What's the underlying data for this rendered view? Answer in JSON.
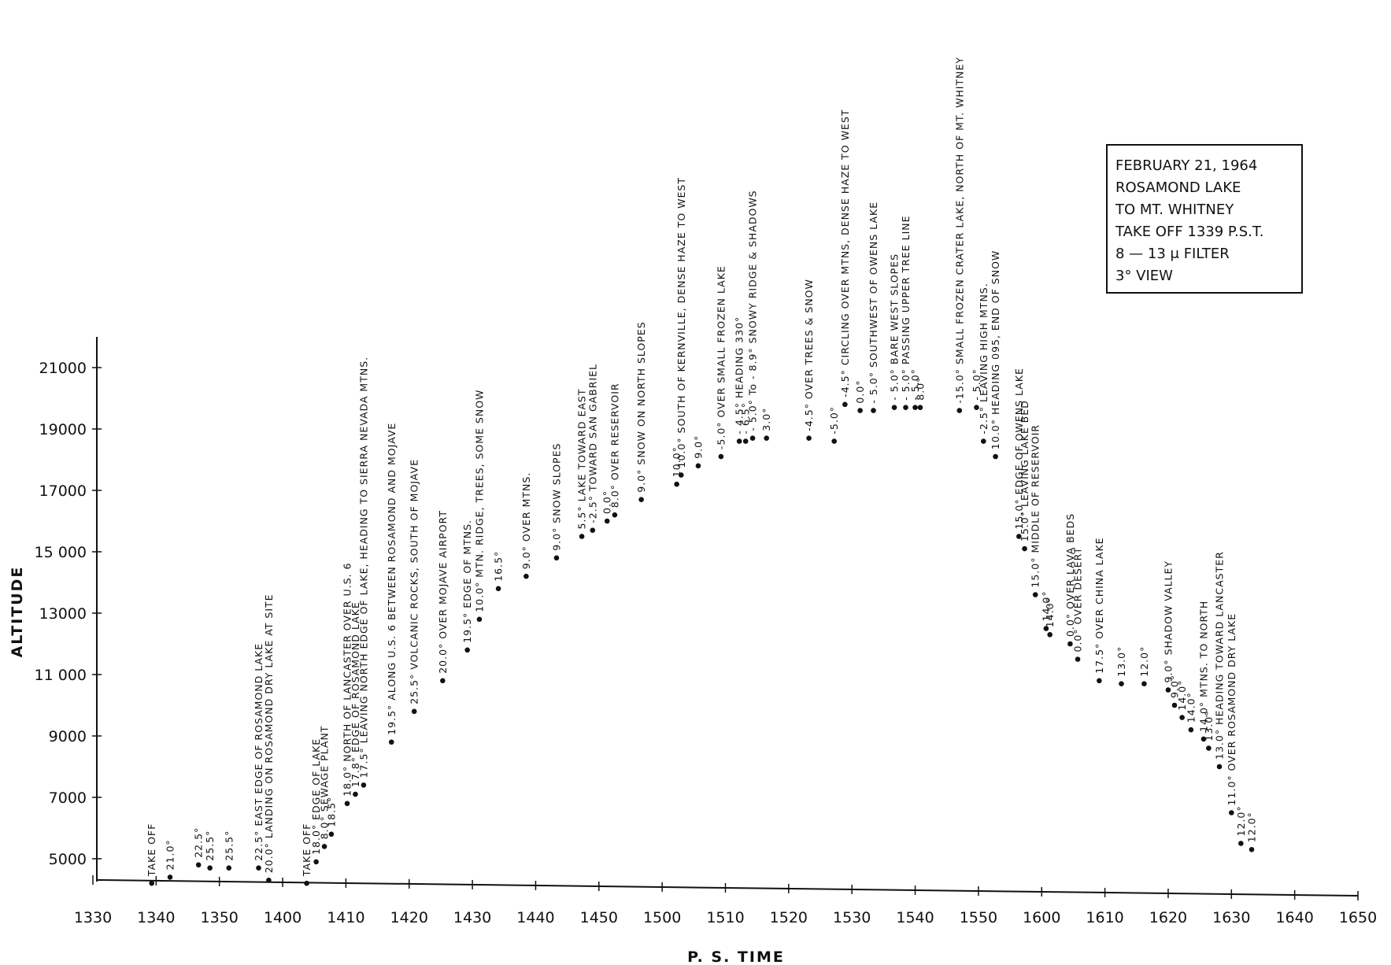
{
  "chart_data": {
    "type": "scatter",
    "xlabel": "P. S.   TIME",
    "ylabel": "ALTITUDE",
    "xlim": [
      1330,
      1650
    ],
    "ylim": [
      4000,
      22000
    ],
    "x_ticks": [
      {
        "label": "1330",
        "t": 0
      },
      {
        "label": "1340",
        "t": 10
      },
      {
        "label": "1350",
        "t": 20
      },
      {
        "label": "1400",
        "t": 30
      },
      {
        "label": "1410",
        "t": 40
      },
      {
        "label": "1420",
        "t": 50
      },
      {
        "label": "1430",
        "t": 60
      },
      {
        "label": "1440",
        "t": 70
      },
      {
        "label": "1450",
        "t": 80
      },
      {
        "label": "1500",
        "t": 90
      },
      {
        "label": "1510",
        "t": 100
      },
      {
        "label": "1520",
        "t": 110
      },
      {
        "label": "1530",
        "t": 120
      },
      {
        "label": "1540",
        "t": 130
      },
      {
        "label": "1550",
        "t": 140
      },
      {
        "label": "1600",
        "t": 150
      },
      {
        "label": "1610",
        "t": 160
      },
      {
        "label": "1620",
        "t": 170
      },
      {
        "label": "1630",
        "t": 180
      },
      {
        "label": "1640",
        "t": 190
      },
      {
        "label": "1650",
        "t": 200
      }
    ],
    "y_ticks": [
      {
        "label": "5000",
        "v": 5000
      },
      {
        "label": "7000",
        "v": 7000
      },
      {
        "label": "9000",
        "v": 9000
      },
      {
        "label": "11 000",
        "v": 11000
      },
      {
        "label": "13000",
        "v": 13000
      },
      {
        "label": "15 000",
        "v": 15000
      },
      {
        "label": "17000",
        "v": 17000
      },
      {
        "label": "19000",
        "v": 19000
      },
      {
        "label": "21000",
        "v": 21000
      }
    ],
    "points": [
      {
        "t": 9.3,
        "alt": 4200,
        "label": "TAKE  OFF"
      },
      {
        "t": 12.2,
        "alt": 4400,
        "label": "21.0°"
      },
      {
        "t": 16.7,
        "alt": 4800,
        "label": "22.5°"
      },
      {
        "t": 18.5,
        "alt": 4700,
        "label": "25.5°"
      },
      {
        "t": 21.5,
        "alt": 4700,
        "label": "25.5°"
      },
      {
        "t": 26.2,
        "alt": 4700,
        "label": "22.5°   EAST  EDGE  OF  ROSAMOND  LAKE"
      },
      {
        "t": 27.8,
        "alt": 4300,
        "label": "20.0°   LANDING  ON  ROSAMOND  DRY  LAKE  AT  SITE"
      },
      {
        "t": 33.8,
        "alt": 4200,
        "label": "TAKE  OFF"
      },
      {
        "t": 35.3,
        "alt": 4900,
        "label": "18.0°   EDGE  OF  LAKE"
      },
      {
        "t": 36.6,
        "alt": 5400,
        "label": "8.0°   SEWAGE  PLANT"
      },
      {
        "t": 37.7,
        "alt": 5800,
        "label": "18.5°"
      },
      {
        "t": 40.2,
        "alt": 6800,
        "label": "18.0°   NORTH  OF  LANCASTER  OVER  U.S.  6"
      },
      {
        "t": 41.5,
        "alt": 7100,
        "label": "17.8°   EDGE  OF  ROSAMOND  LAKE"
      },
      {
        "t": 42.8,
        "alt": 7400,
        "label": "17.5°   LEAVING  NORTH  EDGE  OF  LAKE,  HEADING  TO  SIERRA  NEVADA  MTNS."
      },
      {
        "t": 47.2,
        "alt": 8800,
        "label": "19.5°   ALONG  U.S.  6  BETWEEN  ROSAMOND  AND  MOJAVE"
      },
      {
        "t": 50.8,
        "alt": 9800,
        "label": "25.5°  VOLCANIC  ROCKS,  SOUTH  OF  MOJAVE"
      },
      {
        "t": 55.3,
        "alt": 10800,
        "label": "20.0°   OVER  MOJAVE  AIRPORT"
      },
      {
        "t": 59.2,
        "alt": 11800,
        "label": "19.5°   EDGE  OF  MTNS."
      },
      {
        "t": 61.1,
        "alt": 12800,
        "label": "10.0°  MTN.  RIDGE,  TREES,  SOME  SNOW"
      },
      {
        "t": 64.1,
        "alt": 13800,
        "label": "16.5°"
      },
      {
        "t": 68.5,
        "alt": 14200,
        "label": "9.0°   OVER  MTNS."
      },
      {
        "t": 73.3,
        "alt": 14800,
        "label": "9.0°   SNOW  SLOPES"
      },
      {
        "t": 77.3,
        "alt": 15500,
        "label": "5.5°  LAKE  TOWARD  EAST"
      },
      {
        "t": 79.0,
        "alt": 15700,
        "label": "-2.5°  TOWARD  SAN  GABRIEL"
      },
      {
        "t": 81.3,
        "alt": 16000,
        "label": "0.0°"
      },
      {
        "t": 82.5,
        "alt": 16200,
        "label": "8.0°   OVER  RESERVOIR"
      },
      {
        "t": 86.7,
        "alt": 16700,
        "label": "9.0°   SNOW  ON  NORTH  SLOPES"
      },
      {
        "t": 92.3,
        "alt": 17200,
        "label": "10.0°"
      },
      {
        "t": 93.0,
        "alt": 17500,
        "label": "10.0°   SOUTH  OF  KERNVILLE,  DENSE  HAZE  TO  WEST"
      },
      {
        "t": 95.7,
        "alt": 17800,
        "label": "9.0°"
      },
      {
        "t": 99.3,
        "alt": 18100,
        "label": "-5.0°   OVER  SMALL  FROZEN  LAKE"
      },
      {
        "t": 102.2,
        "alt": 18600,
        "label": "- 4.5°   HEADING  330°"
      },
      {
        "t": 103.2,
        "alt": 18600,
        "label": "- 6.5°"
      },
      {
        "t": 104.3,
        "alt": 18700,
        "label": "- 5.0°   To - 8.9°   SNOWY  RIDGE  &  SHADOWS"
      },
      {
        "t": 106.5,
        "alt": 18700,
        "label": "3.0°"
      },
      {
        "t": 113.2,
        "alt": 18700,
        "label": "-4.5°   OVER  TREES  &  SNOW"
      },
      {
        "t": 117.2,
        "alt": 18600,
        "label": "-5.0°"
      },
      {
        "t": 118.9,
        "alt": 19800,
        "label": "-4.5°   CIRCLING  OVER  MTNS,  DENSE  HAZE  TO  WEST"
      },
      {
        "t": 121.3,
        "alt": 19600,
        "label": "0.0°"
      },
      {
        "t": 123.4,
        "alt": 19600,
        "label": "- 5.0°   SOUTHWEST  OF  OWENS  LAKE"
      },
      {
        "t": 126.7,
        "alt": 19700,
        "label": "- 5.0°   BARE  WEST  SLOPES"
      },
      {
        "t": 128.5,
        "alt": 19700,
        "label": "- 5.0°   PASSING  UPPER  TREE  LINE"
      },
      {
        "t": 130.0,
        "alt": 19700,
        "label": "- 5.0°"
      },
      {
        "t": 130.8,
        "alt": 19700,
        "label": "8.0°"
      },
      {
        "t": 137.0,
        "alt": 19600,
        "label": "-15.0°   SMALL  FROZEN  CRATER  LAKE,  NORTH  OF  MT.  WHITNEY"
      },
      {
        "t": 139.7,
        "alt": 19700,
        "label": "- 5.0°"
      },
      {
        "t": 140.8,
        "alt": 18600,
        "label": "-2.5°   LEAVING  HIGH  MTNS."
      },
      {
        "t": 142.7,
        "alt": 18100,
        "label": "10.0°   HEADING  095,  END  OF  SNOW"
      },
      {
        "t": 146.4,
        "alt": 15500,
        "label": "15.0°   EDGE  OF  OWENS  LAKE"
      },
      {
        "t": 147.3,
        "alt": 15100,
        "label": "15.0°   LEAVING  LAKE  BED"
      },
      {
        "t": 149.0,
        "alt": 13600,
        "label": "15.0°   MIDDLE  OF  RESERVOIR"
      },
      {
        "t": 150.7,
        "alt": 12500,
        "label": "14.0°"
      },
      {
        "t": 151.3,
        "alt": 12300,
        "label": "14.0°"
      },
      {
        "t": 154.5,
        "alt": 12000,
        "label": "0.0°   OVER  LAVA  BEDS"
      },
      {
        "t": 155.7,
        "alt": 11500,
        "label": "0.0°   OVER  DESERT"
      },
      {
        "t": 159.1,
        "alt": 10800,
        "label": "17.5°   OVER  CHINA  LAKE"
      },
      {
        "t": 162.6,
        "alt": 10700,
        "label": "13.0°"
      },
      {
        "t": 166.2,
        "alt": 10700,
        "label": "12.0°"
      },
      {
        "t": 170.0,
        "alt": 10500,
        "label": "9.0°   SHADOW  VALLEY"
      },
      {
        "t": 171.0,
        "alt": 10000,
        "label": "9.0°"
      },
      {
        "t": 172.2,
        "alt": 9600,
        "label": "14.0°"
      },
      {
        "t": 173.6,
        "alt": 9200,
        "label": "14.0°"
      },
      {
        "t": 175.6,
        "alt": 8900,
        "label": "14.0°   MTNS.  TO  NORTH"
      },
      {
        "t": 176.4,
        "alt": 8600,
        "label": "13.0°"
      },
      {
        "t": 178.1,
        "alt": 8000,
        "label": "13.0°   HEADING  TOWARD  LANCASTER"
      },
      {
        "t": 180.0,
        "alt": 6500,
        "label": "11.0°   OVER  ROSAMOND  DRY  LAKE"
      },
      {
        "t": 181.5,
        "alt": 5500,
        "label": "12.0°"
      },
      {
        "t": 183.2,
        "alt": 5300,
        "label": "12.0°"
      }
    ],
    "legend": [
      "FEBRUARY  21,  1964",
      "ROSAMOND  LAKE",
      "TO  MT.  WHITNEY",
      "TAKE  OFF  1339  P.S.T.",
      "8 — 13 μ   FILTER",
      "3°   VIEW"
    ],
    "grid": false
  }
}
